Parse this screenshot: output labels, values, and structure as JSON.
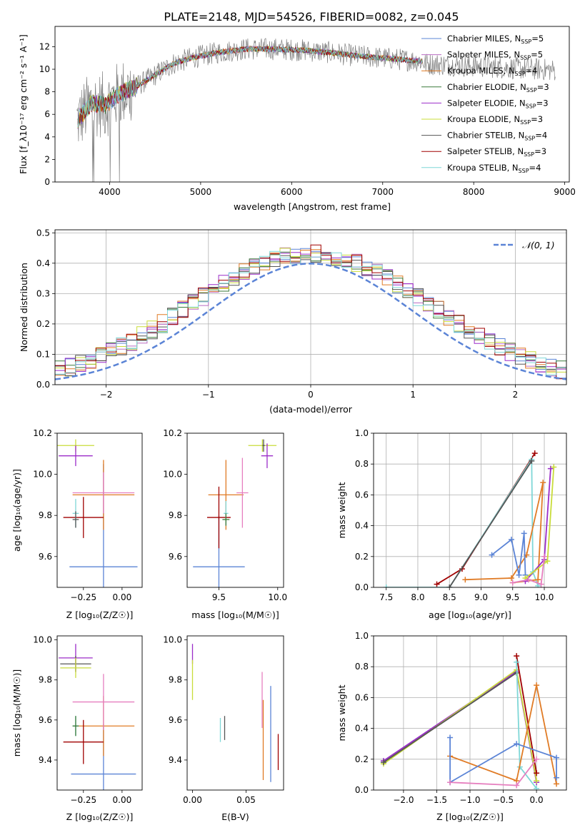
{
  "title": "PLATE=2148, MJD=54526, FIBERID=0082, z=0.045",
  "colors": {
    "Chabrier MILES": "#5b84d6",
    "Salpeter MILES": "#b96bc2",
    "Kroupa MILES": "#e07b25",
    "Chabrier ELODIE": "#3a7a3a",
    "Salpeter ELODIE": "#9b2cc9",
    "Kroupa ELODIE": "#c9dc3a",
    "Chabrier STELIB": "#555555",
    "Salpeter STELIB": "#a00000",
    "Kroupa STELIB": "#7fd7d7",
    "pink": "#e67fbf",
    "gaussian": "#5b84d6"
  },
  "chart_data": [
    {
      "type": "line",
      "panel": "spectrum",
      "xlabel": "wavelength [Angstrom, rest frame]",
      "ylabel": "Flux [f_λ10⁻¹⁷ erg cm⁻² s⁻¹ A⁻¹]",
      "xlim": [
        3400,
        9050
      ],
      "ylim": [
        0,
        13.8
      ],
      "xticks": [
        4000,
        5000,
        6000,
        7000,
        8000,
        9000
      ],
      "yticks": [
        0,
        2,
        4,
        6,
        8,
        10,
        12
      ],
      "legend_placement": "right",
      "legend": [
        {
          "model": "Chabrier MILES",
          "label": "Chabrier MILES, N",
          "sub": "SSP",
          "eq": "=5"
        },
        {
          "model": "Salpeter MILES",
          "label": "Salpeter MILES, N",
          "sub": "SSP",
          "eq": "=5"
        },
        {
          "model": "Kroupa MILES",
          "label": "Kroupa MILES, N",
          "sub": "SSP",
          "eq": "=4"
        },
        {
          "model": "Chabrier ELODIE",
          "label": "Chabrier ELODIE, N",
          "sub": "SSP",
          "eq": "=3"
        },
        {
          "model": "Salpeter ELODIE",
          "label": "Salpeter ELODIE, N",
          "sub": "SSP",
          "eq": "=3"
        },
        {
          "model": "Kroupa ELODIE",
          "label": "Kroupa ELODIE, N",
          "sub": "SSP",
          "eq": "=3"
        },
        {
          "model": "Chabrier STELIB",
          "label": "Chabrier STELIB, N",
          "sub": "SSP",
          "eq": "=4"
        },
        {
          "model": "Salpeter STELIB",
          "label": "Salpeter STELIB, N",
          "sub": "SSP",
          "eq": "=3"
        },
        {
          "model": "Kroupa STELIB",
          "label": "Kroupa STELIB, N",
          "sub": "SSP",
          "eq": "=4"
        }
      ],
      "continuum": [
        [
          3650,
          5.5
        ],
        [
          3800,
          7.0
        ],
        [
          3950,
          6.8
        ],
        [
          4100,
          7.8
        ],
        [
          4300,
          8.5
        ],
        [
          4500,
          9.5
        ],
        [
          4700,
          10.5
        ],
        [
          4900,
          11.0
        ],
        [
          5200,
          11.5
        ],
        [
          5500,
          11.8
        ],
        [
          5800,
          11.8
        ],
        [
          6100,
          11.7
        ],
        [
          6400,
          11.5
        ],
        [
          6700,
          11.2
        ],
        [
          7000,
          11.0
        ],
        [
          7300,
          10.8
        ],
        [
          7450,
          10.7
        ]
      ],
      "data_range": [
        3640,
        8900
      ]
    },
    {
      "type": "bar",
      "panel": "residual histogram",
      "xlabel": "(data-model)/error",
      "ylabel": "Normed distribution",
      "xlim": [
        -2.5,
        2.5
      ],
      "ylim": [
        0,
        0.51
      ],
      "xticks": [
        -2,
        -1,
        0,
        1,
        2
      ],
      "yticks": [
        0.0,
        0.1,
        0.2,
        0.3,
        0.4,
        0.5
      ],
      "legend": "𝒩(0, 1)",
      "gaussian": {
        "mean": 0,
        "sigma": 1
      },
      "bin_width": 0.1
    },
    {
      "type": "scatter",
      "panel": "age vs Z",
      "xlabel": "Z [log₁₀(Z/Z☉)]",
      "ylabel": "age  [log₁₀(age/yr)]",
      "xlim": [
        -0.42,
        0.13
      ],
      "ylim": [
        9.45,
        10.2
      ],
      "xticks": [
        -0.25,
        0.0
      ],
      "yticks": [
        9.6,
        9.8,
        10.0,
        10.2
      ],
      "points": [
        {
          "model": "Kroupa ELODIE",
          "x": -0.3,
          "y": 10.14,
          "xe": 0.12,
          "ye": 0.03
        },
        {
          "model": "Salpeter ELODIE",
          "x": -0.3,
          "y": 10.09,
          "xe": 0.11,
          "ye": 0.05
        },
        {
          "model": "Chabrier MILES",
          "x": -0.12,
          "y": 9.55,
          "xe": 0.22,
          "ye": 0.5
        },
        {
          "model": "Kroupa MILES",
          "x": -0.12,
          "y": 9.9,
          "xe": 0.2,
          "ye": 0.17
        },
        {
          "model": "pink",
          "x": -0.12,
          "y": 9.91,
          "xe": 0.2,
          "ye": 0.1
        },
        {
          "model": "Salpeter STELIB",
          "x": -0.25,
          "y": 9.79,
          "xe": 0.13,
          "ye": 0.1
        },
        {
          "model": "Kroupa STELIB",
          "x": -0.3,
          "y": 9.81,
          "xe": 0.02,
          "ye": 0.07
        },
        {
          "model": "Chabrier STELIB",
          "x": -0.3,
          "y": 9.78,
          "xe": 0.02,
          "ye": 0.04
        }
      ]
    },
    {
      "type": "scatter",
      "panel": "age vs mass",
      "xlabel": "mass [log₁₀(M/M☉)]",
      "ylabel": "",
      "xlim": [
        9.23,
        10.05
      ],
      "ylim": [
        9.45,
        10.2
      ],
      "xticks": [
        9.5,
        10.0
      ],
      "yticks": [
        9.6,
        9.8,
        10.0,
        10.2
      ],
      "points": [
        {
          "model": "Kroupa ELODIE",
          "x": 9.87,
          "y": 10.14,
          "xe": 0.12,
          "ye": 0.03
        },
        {
          "model": "Salpeter ELODIE",
          "x": 9.91,
          "y": 10.09,
          "xe": 0.05,
          "ye": 0.06
        },
        {
          "model": "Chabrier STELIB",
          "x": 9.88,
          "y": 10.14,
          "xe": 0.01,
          "ye": 0.03
        },
        {
          "model": "Chabrier MILES",
          "x": 9.5,
          "y": 9.55,
          "xe": 0.22,
          "ye": 0.25
        },
        {
          "model": "Kroupa MILES",
          "x": 9.56,
          "y": 9.9,
          "xe": 0.15,
          "ye": 0.17
        },
        {
          "model": "pink",
          "x": 9.7,
          "y": 9.91,
          "xe": 0.05,
          "ye": 0.17
        },
        {
          "model": "Salpeter STELIB",
          "x": 9.5,
          "y": 9.79,
          "xe": 0.1,
          "ye": 0.15
        },
        {
          "model": "Kroupa STELIB",
          "x": 9.56,
          "y": 9.81,
          "xe": 0.02,
          "ye": 0.06
        },
        {
          "model": "Chabrier ELODIE",
          "x": 9.56,
          "y": 9.78,
          "xe": 0.03,
          "ye": 0.03
        }
      ]
    },
    {
      "type": "line",
      "panel": "mass weight vs age",
      "xlabel": "age  [log₁₀(age/yr)]",
      "ylabel": "mass weight",
      "xlim": [
        7.3,
        10.35
      ],
      "ylim": [
        0,
        1.0
      ],
      "xticks": [
        7.5,
        8.0,
        8.5,
        9.0,
        9.5,
        10.0
      ],
      "yticks": [
        0.0,
        0.2,
        0.4,
        0.6,
        0.8,
        1.0
      ],
      "series": [
        {
          "model": "Salpeter STELIB",
          "x": [
            8.3,
            8.7,
            9.85
          ],
          "y": [
            0.02,
            0.12,
            0.87
          ]
        },
        {
          "model": "Kroupa STELIB",
          "x": [
            7.5,
            8.5,
            9.8,
            9.82,
            9.9
          ],
          "y": [
            0.0,
            0.0,
            0.83,
            0.1,
            0.01
          ]
        },
        {
          "model": "Chabrier STELIB",
          "x": [
            8.5,
            9.8
          ],
          "y": [
            0.0,
            0.82
          ]
        },
        {
          "model": "Kroupa MILES",
          "x": [
            8.75,
            9.48,
            9.72,
            9.98,
            9.9,
            9.5
          ],
          "y": [
            0.05,
            0.06,
            0.21,
            0.68,
            0.05,
            0.03
          ]
        },
        {
          "model": "Chabrier MILES",
          "x": [
            9.17,
            9.48,
            9.6,
            9.68,
            9.7
          ],
          "y": [
            0.21,
            0.31,
            0.08,
            0.35,
            0.08
          ]
        },
        {
          "model": "Salpeter ELODIE",
          "x": [
            9.7,
            10.0,
            10.1
          ],
          "y": [
            0.04,
            0.18,
            0.77
          ]
        },
        {
          "model": "Kroupa ELODIE",
          "x": [
            9.7,
            10.05,
            10.15
          ],
          "y": [
            0.06,
            0.17,
            0.78
          ]
        },
        {
          "model": "pink",
          "x": [
            9.5,
            9.75,
            9.95,
            10.0
          ],
          "y": [
            0.03,
            0.05,
            0.02,
            0.2
          ]
        }
      ]
    },
    {
      "type": "scatter",
      "panel": "mass vs Z",
      "xlabel": "Z [log₁₀(Z/Z☉)]",
      "ylabel": "mass [log₁₀(M/M☉)]",
      "xlim": [
        -0.42,
        0.13
      ],
      "ylim": [
        9.25,
        10.02
      ],
      "xticks": [
        -0.25,
        0.0
      ],
      "yticks": [
        9.4,
        9.6,
        9.8,
        10.0
      ],
      "points": [
        {
          "model": "Salpeter ELODIE",
          "x": -0.3,
          "y": 9.91,
          "xe": 0.11,
          "ye": 0.07
        },
        {
          "model": "Chabrier STELIB",
          "x": -0.3,
          "y": 9.88,
          "xe": 0.1,
          "ye": 0.04
        },
        {
          "model": "Kroupa ELODIE",
          "x": -0.3,
          "y": 9.86,
          "xe": 0.1,
          "ye": 0.05
        },
        {
          "model": "Chabrier MILES",
          "x": -0.12,
          "y": 9.33,
          "xe": 0.21,
          "ye": 0.25
        },
        {
          "model": "Kroupa MILES",
          "x": -0.12,
          "y": 9.57,
          "xe": 0.2,
          "ye": 0.15
        },
        {
          "model": "pink",
          "x": -0.12,
          "y": 9.69,
          "xe": 0.2,
          "ye": 0.14
        },
        {
          "model": "Salpeter STELIB",
          "x": -0.25,
          "y": 9.49,
          "xe": 0.13,
          "ye": 0.11
        },
        {
          "model": "Kroupa STELIB",
          "x": -0.3,
          "y": 9.57,
          "xe": 0.02,
          "ye": 0.05
        },
        {
          "model": "Chabrier ELODIE",
          "x": -0.3,
          "y": 9.57,
          "xe": 0.02,
          "ye": 0.05
        }
      ]
    },
    {
      "type": "scatter",
      "panel": "mass vs E(B-V)",
      "xlabel": "E(B-V)",
      "ylabel": "",
      "xlim": [
        -0.005,
        0.085
      ],
      "ylim": [
        9.25,
        10.02
      ],
      "xticks": [
        0.0,
        0.05
      ],
      "yticks": [
        9.4,
        9.6,
        9.8,
        10.0
      ],
      "points": [
        {
          "model": "Salpeter ELODIE",
          "x": 0.0,
          "y": 9.93,
          "xe": 0,
          "ye": 0.05
        },
        {
          "model": "Kroupa ELODIE",
          "x": 0.0,
          "y": 9.8,
          "xe": 0,
          "ye": 0.1
        },
        {
          "model": "Kroupa STELIB",
          "x": 0.026,
          "y": 9.55,
          "xe": 0,
          "ye": 0.06
        },
        {
          "model": "Chabrier STELIB",
          "x": 0.03,
          "y": 9.56,
          "xe": 0,
          "ye": 0.06
        },
        {
          "model": "pink",
          "x": 0.065,
          "y": 9.7,
          "xe": 0,
          "ye": 0.14
        },
        {
          "model": "Kroupa MILES",
          "x": 0.066,
          "y": 9.5,
          "xe": 0,
          "ye": 0.2
        },
        {
          "model": "Chabrier MILES",
          "x": 0.073,
          "y": 9.53,
          "xe": 0,
          "ye": 0.24
        },
        {
          "model": "Salpeter STELIB",
          "x": 0.08,
          "y": 9.44,
          "xe": 0,
          "ye": 0.09
        }
      ]
    },
    {
      "type": "line",
      "panel": "mass weight vs Z",
      "xlabel": "Z [log₁₀(Z/Z☉)]",
      "ylabel": "mass weight",
      "xlim": [
        -2.45,
        0.45
      ],
      "ylim": [
        0,
        1.0
      ],
      "xticks": [
        -2.0,
        -1.5,
        -1.0,
        -0.5,
        0.0
      ],
      "yticks": [
        0.0,
        0.2,
        0.4,
        0.6,
        0.8,
        1.0
      ],
      "series": [
        {
          "model": "Salpeter ELODIE",
          "x": [
            -2.3,
            -0.3,
            0.0
          ],
          "y": [
            0.19,
            0.77,
            0.05
          ]
        },
        {
          "model": "Kroupa ELODIE",
          "x": [
            -2.3,
            -0.3,
            0.0
          ],
          "y": [
            0.17,
            0.78,
            0.06
          ]
        },
        {
          "model": "Chabrier STELIB",
          "x": [
            -2.3,
            -0.3
          ],
          "y": [
            0.18,
            0.76
          ]
        },
        {
          "model": "Salpeter STELIB",
          "x": [
            -0.3,
            0.0
          ],
          "y": [
            0.87,
            0.11
          ]
        },
        {
          "model": "Kroupa STELIB",
          "x": [
            -0.3,
            -0.25,
            0.0
          ],
          "y": [
            0.83,
            0.15,
            0.01
          ]
        },
        {
          "model": "Kroupa MILES",
          "x": [
            -1.3,
            -0.3,
            0.0,
            0.3
          ],
          "y": [
            0.22,
            0.06,
            0.68,
            0.04
          ]
        },
        {
          "model": "Chabrier MILES",
          "x": [
            -1.3,
            -1.3,
            -0.3,
            0.3,
            0.3
          ],
          "y": [
            0.34,
            0.05,
            0.3,
            0.21,
            0.08
          ]
        },
        {
          "model": "pink",
          "x": [
            -1.3,
            -0.3,
            0.0
          ],
          "y": [
            0.05,
            0.03,
            0.2
          ]
        }
      ]
    }
  ]
}
